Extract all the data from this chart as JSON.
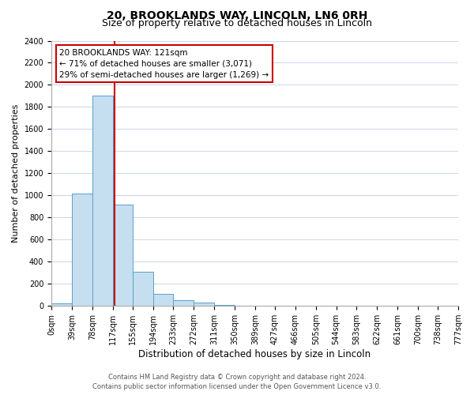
{
  "title": "20, BROOKLANDS WAY, LINCOLN, LN6 0RH",
  "subtitle": "Size of property relative to detached houses in Lincoln",
  "xlabel": "Distribution of detached houses by size in Lincoln",
  "ylabel": "Number of detached properties",
  "bar_left_edges": [
    0,
    39,
    78,
    117,
    155,
    194,
    233,
    272,
    311,
    350,
    389,
    427,
    466,
    505,
    544,
    583,
    622,
    661,
    700,
    738
  ],
  "bar_right_edges": [
    39,
    78,
    117,
    155,
    194,
    233,
    272,
    311,
    350,
    389,
    427,
    466,
    505,
    544,
    583,
    622,
    661,
    700,
    738,
    777
  ],
  "bar_heights": [
    20,
    1020,
    1900,
    920,
    310,
    110,
    50,
    30,
    10,
    5,
    0,
    0,
    0,
    0,
    0,
    0,
    0,
    0,
    0,
    0
  ],
  "bar_color": "#c5dff0",
  "bar_edge_color": "#5a9ec8",
  "property_size": 121,
  "property_line_color": "#cc0000",
  "annotation_line1": "20 BROOKLANDS WAY: 121sqm",
  "annotation_line2": "← 71% of detached houses are smaller (3,071)",
  "annotation_line3": "29% of semi-detached houses are larger (1,269) →",
  "annotation_box_color": "#ffffff",
  "annotation_box_edge_color": "#cc0000",
  "ylim": [
    0,
    2400
  ],
  "xlim": [
    0,
    777
  ],
  "yticks": [
    0,
    200,
    400,
    600,
    800,
    1000,
    1200,
    1400,
    1600,
    1800,
    2000,
    2200,
    2400
  ],
  "xtick_positions": [
    0,
    39,
    78,
    117,
    155,
    194,
    233,
    272,
    311,
    350,
    389,
    427,
    466,
    505,
    544,
    583,
    622,
    661,
    700,
    738,
    777
  ],
  "xtick_labels": [
    "0sqm",
    "39sqm",
    "78sqm",
    "117sqm",
    "155sqm",
    "194sqm",
    "233sqm",
    "272sqm",
    "311sqm",
    "350sqm",
    "389sqm",
    "427sqm",
    "466sqm",
    "505sqm",
    "544sqm",
    "583sqm",
    "622sqm",
    "661sqm",
    "700sqm",
    "738sqm",
    "777sqm"
  ],
  "footer_line1": "Contains HM Land Registry data © Crown copyright and database right 2024.",
  "footer_line2": "Contains public sector information licensed under the Open Government Licence v3.0.",
  "bg_color": "#ffffff",
  "grid_color": "#c8d8e8",
  "title_fontsize": 10,
  "subtitle_fontsize": 9,
  "xlabel_fontsize": 8.5,
  "ylabel_fontsize": 8,
  "tick_fontsize": 7,
  "annotation_fontsize": 7.5,
  "footer_fontsize": 6
}
